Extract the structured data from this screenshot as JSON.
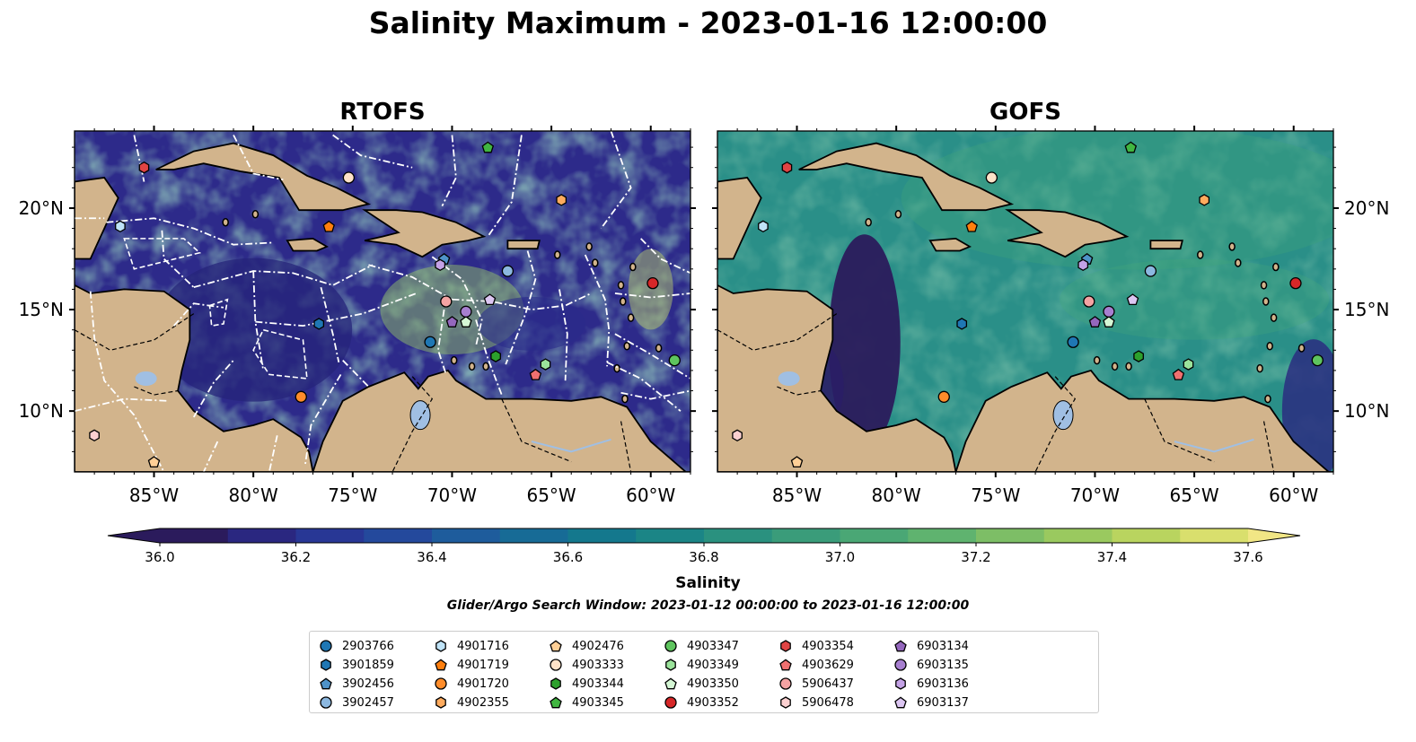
{
  "title": "Salinity Maximum - 2023-01-16 12:00:00",
  "panels": [
    {
      "title": "RTOFS"
    },
    {
      "title": "GOFS"
    }
  ],
  "colorbar": {
    "label": "Salinity",
    "min": 36.0,
    "max": 37.6,
    "step": 0.1,
    "ticks": [
      "36.0",
      "36.2",
      "36.4",
      "36.6",
      "36.8",
      "37.0",
      "37.2",
      "37.4",
      "37.6"
    ],
    "colors": [
      "#2b1b5c",
      "#2a2780",
      "#283795",
      "#24499c",
      "#1e5c9c",
      "#176b96",
      "#14788d",
      "#1b8586",
      "#2a917f",
      "#3a9c7a",
      "#4aa775",
      "#5fb36f",
      "#7dbe66",
      "#9ac95f",
      "#b9d45f",
      "#d9df6d",
      "#f1e685"
    ]
  },
  "search_window": "Glider/Argo Search Window: 2023-01-12 00:00:00 to 2023-01-16 12:00:00",
  "chart_data": [
    {
      "type": "scatter",
      "title": "RTOFS",
      "xlim": [
        -89,
        -58
      ],
      "ylim": [
        7,
        23.8
      ],
      "x_ticks": [
        "85°W",
        "80°W",
        "75°W",
        "70°W",
        "65°W",
        "60°W"
      ],
      "y_ticks": [
        "10°N",
        "15°N",
        "20°N"
      ]
    },
    {
      "type": "scatter",
      "title": "GOFS",
      "xlim": [
        -89,
        -58
      ],
      "ylim": [
        7,
        23.8
      ],
      "x_ticks": [
        "85°W",
        "80°W",
        "75°W",
        "70°W",
        "65°W",
        "60°W"
      ],
      "y_ticks": [
        "10°N",
        "15°N",
        "20°N"
      ]
    }
  ],
  "floats": [
    {
      "id": "2903766",
      "marker": "circle",
      "color": "#1f77b4",
      "lon": -71.1,
      "lat": 13.4
    },
    {
      "id": "3901859",
      "marker": "hexagon",
      "color": "#1f77b4",
      "lon": -76.7,
      "lat": 14.3
    },
    {
      "id": "3902456",
      "marker": "pentagon",
      "color": "#4f93c9",
      "lon": -70.4,
      "lat": 17.5
    },
    {
      "id": "3902457",
      "marker": "circle",
      "color": "#8cb8e0",
      "lon": -67.2,
      "lat": 16.9
    },
    {
      "id": "4901716",
      "marker": "hexagon",
      "color": "#bfe3f7",
      "lon": -86.7,
      "lat": 19.1
    },
    {
      "id": "4901719",
      "marker": "pentagon",
      "color": "#ff7f0e",
      "lon": -76.2,
      "lat": 19.1
    },
    {
      "id": "4901720",
      "marker": "circle",
      "color": "#ff8c2a",
      "lon": -77.6,
      "lat": 10.7
    },
    {
      "id": "4902355",
      "marker": "hexagon",
      "color": "#ffab5e",
      "lon": -64.5,
      "lat": 20.4
    },
    {
      "id": "4902476",
      "marker": "pentagon",
      "color": "#ffcf96",
      "lon": -85.0,
      "lat": 7.5
    },
    {
      "id": "4903333",
      "marker": "circle",
      "color": "#ffe2c8",
      "lon": -75.2,
      "lat": 21.5
    },
    {
      "id": "4903344",
      "marker": "hexagon",
      "color": "#2ca02c",
      "lon": -67.8,
      "lat": 12.7
    },
    {
      "id": "4903345",
      "marker": "pentagon",
      "color": "#41b641",
      "lon": -68.2,
      "lat": 23.0
    },
    {
      "id": "4903347",
      "marker": "circle",
      "color": "#5ec45e",
      "lon": -58.8,
      "lat": 12.5
    },
    {
      "id": "4903349",
      "marker": "hexagon",
      "color": "#9be39b",
      "lon": -65.3,
      "lat": 12.3
    },
    {
      "id": "4903350",
      "marker": "pentagon",
      "color": "#d5f7d5",
      "lon": -69.3,
      "lat": 14.4
    },
    {
      "id": "4903352",
      "marker": "circle",
      "color": "#d62728",
      "lon": -59.9,
      "lat": 16.3
    },
    {
      "id": "4903354",
      "marker": "hexagon",
      "color": "#e04444",
      "lon": -85.5,
      "lat": 22.0
    },
    {
      "id": "4903629",
      "marker": "pentagon",
      "color": "#f07070",
      "lon": -65.8,
      "lat": 11.8
    },
    {
      "id": "5906437",
      "marker": "circle",
      "color": "#f4a3a3",
      "lon": -70.3,
      "lat": 15.4
    },
    {
      "id": "5906478",
      "marker": "hexagon",
      "color": "#fbd0d0",
      "lon": -88.0,
      "lat": 8.8
    },
    {
      "id": "6903134",
      "marker": "pentagon",
      "color": "#9467bd",
      "lon": -70.0,
      "lat": 14.4
    },
    {
      "id": "6903135",
      "marker": "circle",
      "color": "#a77fd0",
      "lon": -69.3,
      "lat": 14.9
    },
    {
      "id": "6903136",
      "marker": "hexagon",
      "color": "#c4a2e6",
      "lon": -70.6,
      "lat": 17.2
    },
    {
      "id": "6903137",
      "marker": "pentagon",
      "color": "#dcc6f2",
      "lon": -68.1,
      "lat": 15.5
    }
  ]
}
